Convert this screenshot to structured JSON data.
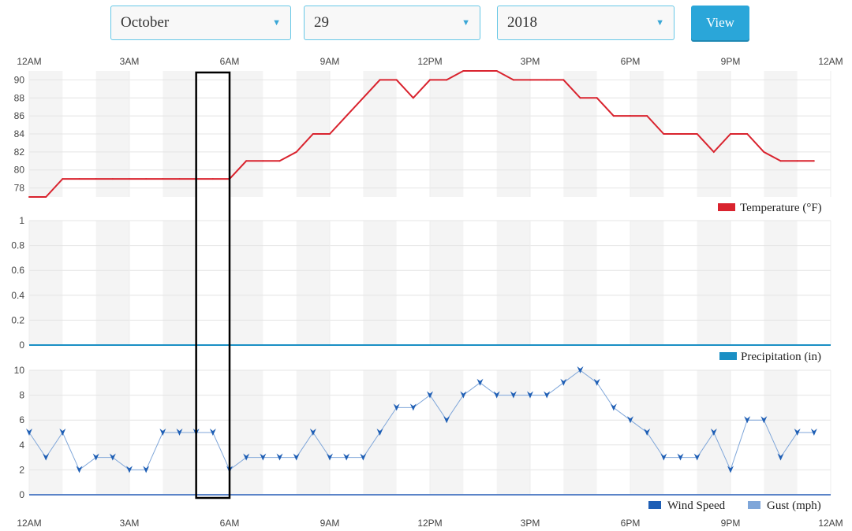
{
  "controls": {
    "month": "October",
    "day": "29",
    "year": "2018",
    "view_label": "View"
  },
  "colors": {
    "temperature": "#d9232e",
    "precipitation": "#1a8fc4",
    "wind": "#1f5fb5",
    "accent": "#2aa6d9"
  },
  "chart_data": {
    "type": "line",
    "time_labels": [
      "12AM",
      "3AM",
      "6AM",
      "9AM",
      "12PM",
      "3PM",
      "6PM",
      "9PM",
      "12AM"
    ],
    "hours": [
      0,
      0.5,
      1,
      1.5,
      2,
      2.5,
      3,
      3.5,
      4,
      4.5,
      5,
      5.5,
      6,
      6.5,
      7,
      7.5,
      8,
      8.5,
      9,
      9.5,
      10,
      10.5,
      11,
      11.5,
      12,
      12.5,
      13,
      13.5,
      14,
      14.5,
      15,
      15.5,
      16,
      16.5,
      17,
      17.5,
      18,
      18.5,
      19,
      19.5,
      20,
      20.5,
      21,
      21.5,
      22,
      22.5,
      23,
      23.5
    ],
    "highlight_range": [
      5,
      6
    ],
    "panels": [
      {
        "name": "Temperature (°F)",
        "legend": "Temperature (°F)",
        "ylim": [
          77,
          91
        ],
        "yticks": [
          78,
          80,
          82,
          84,
          86,
          88,
          90
        ],
        "values": [
          77,
          77,
          79,
          79,
          79,
          79,
          79,
          79,
          79,
          79,
          79,
          79,
          79,
          81,
          81,
          81,
          82,
          84,
          84,
          86,
          88,
          90,
          90,
          88,
          90,
          90,
          91,
          91,
          91,
          90,
          90,
          90,
          90,
          88,
          88,
          86,
          86,
          86,
          84,
          84,
          84,
          82,
          84,
          84,
          82,
          81,
          81,
          81
        ]
      },
      {
        "name": "Precipitation (in)",
        "legend": "Precipitation (in)",
        "ylim": [
          0,
          1
        ],
        "yticks": [
          0,
          0.2,
          0.4,
          0.6,
          0.8,
          1
        ],
        "values": [
          0,
          0,
          0,
          0,
          0,
          0,
          0,
          0,
          0,
          0,
          0,
          0,
          0,
          0,
          0,
          0,
          0,
          0,
          0,
          0,
          0,
          0,
          0,
          0,
          0,
          0,
          0,
          0,
          0,
          0,
          0,
          0,
          0,
          0,
          0,
          0,
          0,
          0,
          0,
          0,
          0,
          0,
          0,
          0,
          0,
          0,
          0,
          0
        ]
      },
      {
        "name": "Wind",
        "legend_speed": "Wind Speed",
        "legend_gust": "Gust (mph)",
        "ylim": [
          0,
          10
        ],
        "yticks": [
          0,
          2,
          4,
          6,
          8,
          10
        ],
        "values": [
          5,
          3,
          5,
          2,
          3,
          3,
          2,
          2,
          5,
          5,
          5,
          5,
          2,
          3,
          3,
          3,
          3,
          5,
          3,
          3,
          3,
          5,
          7,
          7,
          8,
          6,
          8,
          9,
          8,
          8,
          8,
          8,
          9,
          10,
          9,
          7,
          6,
          5,
          3,
          3,
          3,
          5,
          2,
          6,
          6,
          3,
          5,
          5
        ],
        "gust": [
          0,
          0,
          0,
          0,
          0,
          0,
          0,
          0,
          0,
          0,
          0,
          0,
          0,
          0,
          0,
          0,
          0,
          0,
          0,
          0,
          0,
          0,
          0,
          0,
          0,
          0,
          0,
          0,
          0,
          0,
          0,
          0,
          0,
          0,
          0,
          0,
          0,
          0,
          0,
          0,
          0,
          0,
          0,
          0,
          0,
          0,
          0,
          0
        ]
      }
    ]
  }
}
